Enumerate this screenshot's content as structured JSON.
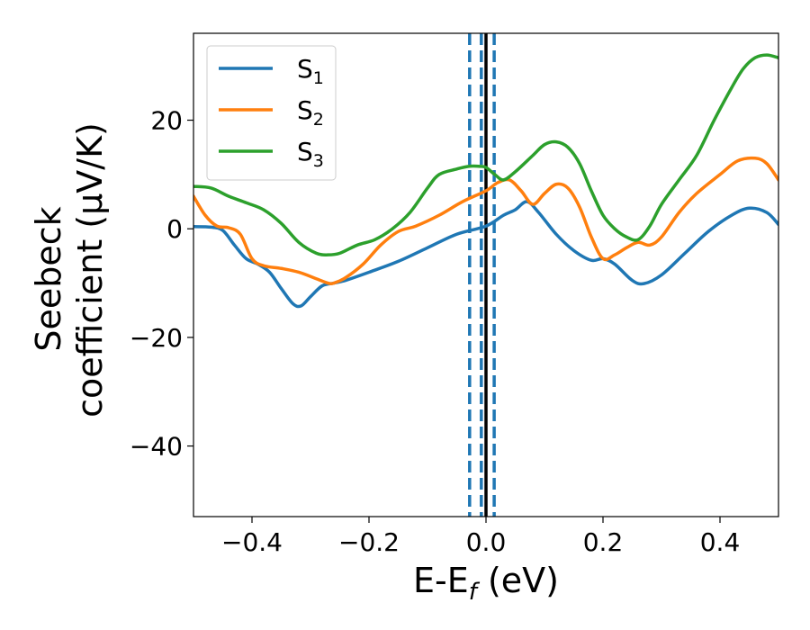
{
  "chart_data": {
    "type": "line",
    "xlabel": "E-E",
    "xlabel_sub": "f",
    "xlabel_unit": " (eV)",
    "ylabel_line1": "Seebeck",
    "ylabel_line2": "coefficient  (μV/K)",
    "xlim": [
      -0.5,
      0.5
    ],
    "ylim": [
      -53,
      36
    ],
    "xticks": [
      -0.4,
      -0.2,
      0.0,
      0.2,
      0.4
    ],
    "xtick_labels": [
      "−0.4",
      "−0.2",
      "0.0",
      "0.2",
      "0.4"
    ],
    "yticks": [
      -40,
      -20,
      0,
      20
    ],
    "ytick_labels": [
      "−40",
      "−20",
      "0",
      "20"
    ],
    "grid": false,
    "legend_position": "top-left",
    "vlines": [
      {
        "x": 0.0,
        "style": "solid",
        "color": "#000000"
      },
      {
        "x": -0.028,
        "style": "dashed",
        "color": "#1f77b4"
      },
      {
        "x": -0.008,
        "style": "dashed",
        "color": "#1f77b4"
      },
      {
        "x": 0.014,
        "style": "dashed",
        "color": "#1f77b4"
      }
    ],
    "series": [
      {
        "name": "S",
        "sub": "1",
        "color": "#1f77b4",
        "x": [
          -0.5,
          -0.47,
          -0.45,
          -0.43,
          -0.41,
          -0.39,
          -0.37,
          -0.35,
          -0.33,
          -0.316,
          -0.3,
          -0.28,
          -0.26,
          -0.24,
          -0.2,
          -0.15,
          -0.1,
          -0.05,
          0.0,
          0.03,
          0.05,
          0.07,
          0.09,
          0.12,
          0.15,
          0.18,
          0.2,
          0.22,
          0.25,
          0.27,
          0.3,
          0.34,
          0.38,
          0.42,
          0.45,
          0.48,
          0.5
        ],
        "y": [
          0.4,
          0.3,
          -0.3,
          -3.0,
          -5.5,
          -6.5,
          -8.0,
          -11.0,
          -13.8,
          -14.2,
          -12.5,
          -10.5,
          -10.0,
          -9.5,
          -8.0,
          -6.0,
          -3.5,
          -1.0,
          0.5,
          2.5,
          3.5,
          5.0,
          3.0,
          -1.0,
          -4.0,
          -5.8,
          -5.5,
          -6.5,
          -9.5,
          -10.1,
          -8.5,
          -4.5,
          -0.5,
          2.5,
          3.8,
          3.0,
          0.8
        ]
      },
      {
        "name": "S",
        "sub": "2",
        "color": "#ff7f0e",
        "x": [
          -0.5,
          -0.48,
          -0.46,
          -0.44,
          -0.42,
          -0.4,
          -0.38,
          -0.35,
          -0.32,
          -0.29,
          -0.27,
          -0.26,
          -0.24,
          -0.21,
          -0.18,
          -0.15,
          -0.12,
          -0.08,
          -0.04,
          0.0,
          0.02,
          0.04,
          0.06,
          0.08,
          0.1,
          0.12,
          0.14,
          0.16,
          0.18,
          0.2,
          0.22,
          0.24,
          0.26,
          0.28,
          0.3,
          0.33,
          0.36,
          0.4,
          0.43,
          0.46,
          0.48,
          0.5
        ],
        "y": [
          6.0,
          2.5,
          0.5,
          0.2,
          -1.0,
          -5.5,
          -6.8,
          -7.3,
          -8.0,
          -9.2,
          -10.0,
          -10.0,
          -9.0,
          -6.5,
          -3.0,
          -0.5,
          0.5,
          2.5,
          5.0,
          7.0,
          8.5,
          9.0,
          7.0,
          4.5,
          6.5,
          8.2,
          7.5,
          4.0,
          -1.5,
          -5.5,
          -4.8,
          -3.5,
          -2.5,
          -3.0,
          -1.5,
          3.0,
          6.5,
          10.0,
          12.5,
          13.0,
          12.0,
          9.0
        ]
      },
      {
        "name": "S",
        "sub": "3",
        "color": "#2ca02c",
        "x": [
          -0.5,
          -0.47,
          -0.44,
          -0.41,
          -0.38,
          -0.35,
          -0.32,
          -0.29,
          -0.27,
          -0.25,
          -0.22,
          -0.19,
          -0.16,
          -0.13,
          -0.1,
          -0.08,
          -0.05,
          -0.03,
          -0.01,
          0.0,
          0.015,
          0.03,
          0.05,
          0.08,
          0.1,
          0.12,
          0.14,
          0.16,
          0.18,
          0.2,
          0.22,
          0.24,
          0.26,
          0.28,
          0.3,
          0.33,
          0.36,
          0.39,
          0.42,
          0.44,
          0.46,
          0.48,
          0.5
        ],
        "y": [
          7.8,
          7.5,
          6.0,
          4.8,
          3.5,
          1.0,
          -2.5,
          -4.5,
          -4.8,
          -4.5,
          -3.0,
          -2.0,
          0.0,
          3.0,
          7.5,
          10.0,
          11.0,
          11.5,
          11.5,
          11.3,
          10.0,
          9.0,
          10.5,
          13.5,
          15.5,
          16.0,
          15.0,
          12.0,
          7.0,
          2.5,
          0.0,
          -1.5,
          -2.0,
          0.5,
          4.5,
          9.0,
          13.5,
          20.0,
          26.0,
          29.5,
          31.5,
          32.0,
          31.5
        ]
      }
    ]
  }
}
